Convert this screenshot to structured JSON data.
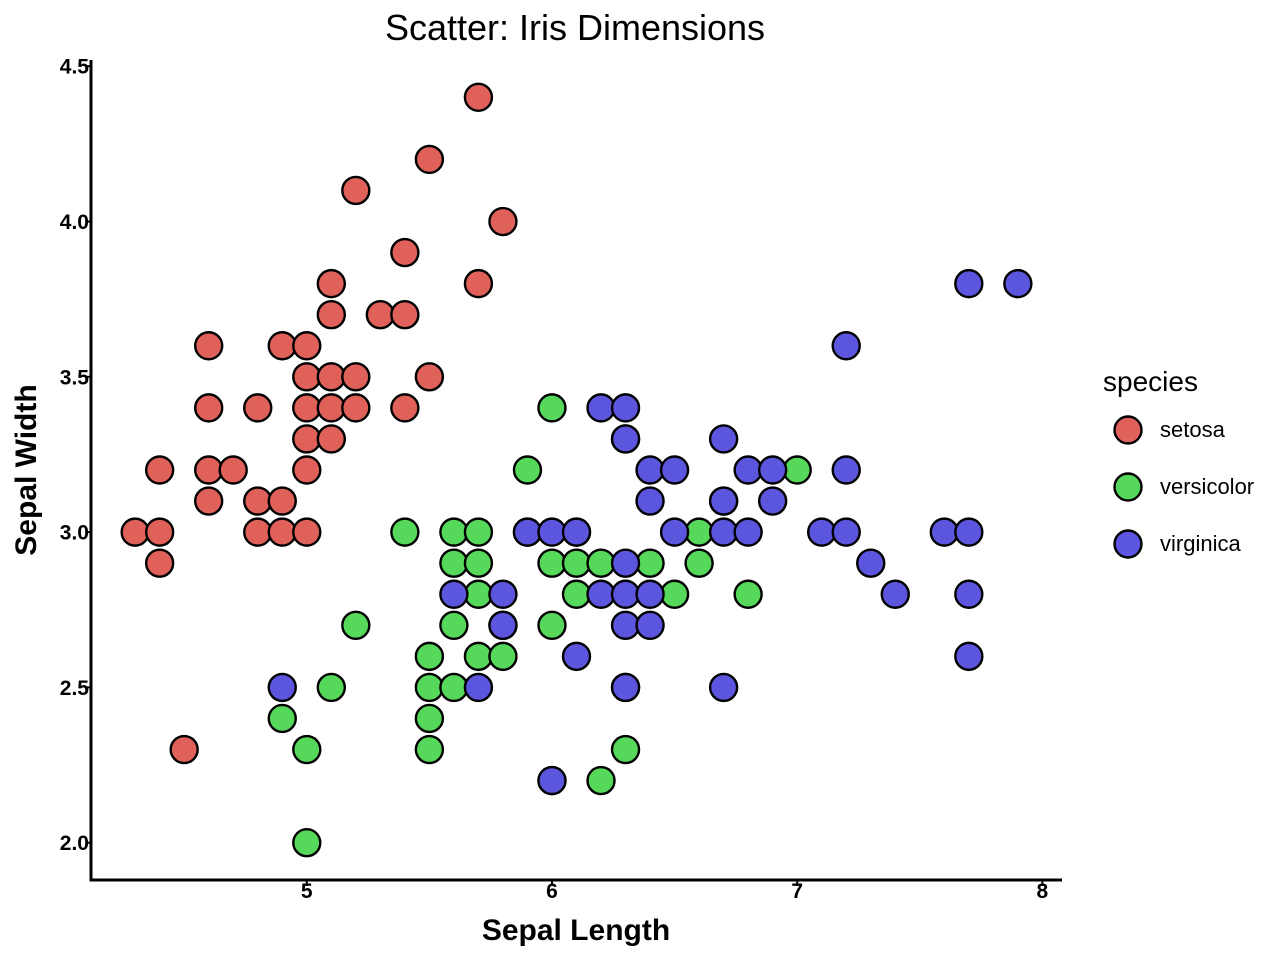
{
  "chart_data": {
    "type": "scatter",
    "title": "Scatter: Iris Dimensions",
    "xlabel": "Sepal Length",
    "ylabel": "Sepal Width",
    "xlim": [
      4.12,
      8.08
    ],
    "ylim": [
      1.88,
      4.52
    ],
    "xticks": [
      5,
      6,
      7,
      8
    ],
    "yticks": [
      2.0,
      2.5,
      3.0,
      3.5,
      4.0,
      4.5
    ],
    "grid": false,
    "legend": {
      "title": "species",
      "position": "right"
    },
    "series": [
      {
        "name": "setosa",
        "color": "#e0605a",
        "points": [
          [
            4.3,
            3.0
          ],
          [
            4.4,
            3.0
          ],
          [
            4.4,
            2.9
          ],
          [
            4.4,
            3.2
          ],
          [
            4.5,
            2.3
          ],
          [
            4.6,
            3.1
          ],
          [
            4.6,
            3.2
          ],
          [
            4.6,
            3.4
          ],
          [
            4.6,
            3.6
          ],
          [
            4.7,
            3.2
          ],
          [
            4.8,
            3.4
          ],
          [
            4.8,
            3.1
          ],
          [
            4.8,
            3.0
          ],
          [
            4.9,
            3.0
          ],
          [
            4.9,
            3.1
          ],
          [
            4.9,
            3.6
          ],
          [
            5.0,
            3.6
          ],
          [
            5.0,
            3.4
          ],
          [
            5.0,
            3.5
          ],
          [
            5.0,
            3.3
          ],
          [
            5.0,
            3.2
          ],
          [
            5.0,
            3.0
          ],
          [
            5.1,
            3.5
          ],
          [
            5.1,
            3.8
          ],
          [
            5.1,
            3.7
          ],
          [
            5.1,
            3.4
          ],
          [
            5.1,
            3.3
          ],
          [
            5.2,
            3.5
          ],
          [
            5.2,
            3.4
          ],
          [
            5.2,
            4.1
          ],
          [
            5.3,
            3.7
          ],
          [
            5.4,
            3.9
          ],
          [
            5.4,
            3.7
          ],
          [
            5.4,
            3.4
          ],
          [
            5.5,
            4.2
          ],
          [
            5.5,
            3.5
          ],
          [
            5.7,
            4.4
          ],
          [
            5.7,
            3.8
          ],
          [
            5.8,
            4.0
          ]
        ]
      },
      {
        "name": "versicolor",
        "color": "#56d95a",
        "points": [
          [
            4.9,
            2.4
          ],
          [
            5.0,
            2.3
          ],
          [
            5.0,
            2.0
          ],
          [
            5.1,
            2.5
          ],
          [
            5.2,
            2.7
          ],
          [
            5.4,
            3.0
          ],
          [
            5.5,
            2.3
          ],
          [
            5.5,
            2.4
          ],
          [
            5.5,
            2.5
          ],
          [
            5.5,
            2.6
          ],
          [
            5.6,
            2.5
          ],
          [
            5.6,
            2.7
          ],
          [
            5.6,
            2.9
          ],
          [
            5.6,
            3.0
          ],
          [
            5.7,
            2.6
          ],
          [
            5.7,
            2.8
          ],
          [
            5.7,
            2.9
          ],
          [
            5.7,
            3.0
          ],
          [
            5.8,
            2.6
          ],
          [
            5.8,
            2.7
          ],
          [
            5.9,
            3.2
          ],
          [
            5.9,
            3.0
          ],
          [
            6.0,
            2.7
          ],
          [
            6.0,
            2.9
          ],
          [
            6.0,
            3.4
          ],
          [
            6.0,
            2.2
          ],
          [
            6.1,
            2.8
          ],
          [
            6.1,
            2.9
          ],
          [
            6.1,
            3.0
          ],
          [
            6.2,
            2.2
          ],
          [
            6.2,
            2.9
          ],
          [
            6.3,
            2.3
          ],
          [
            6.3,
            2.5
          ],
          [
            6.3,
            3.3
          ],
          [
            6.4,
            2.9
          ],
          [
            6.5,
            2.8
          ],
          [
            6.6,
            2.9
          ],
          [
            6.6,
            3.0
          ],
          [
            6.7,
            3.1
          ],
          [
            6.8,
            2.8
          ],
          [
            7.0,
            3.2
          ]
        ]
      },
      {
        "name": "virginica",
        "color": "#5c56df",
        "points": [
          [
            4.9,
            2.5
          ],
          [
            5.6,
            2.8
          ],
          [
            5.7,
            2.5
          ],
          [
            5.8,
            2.7
          ],
          [
            5.8,
            2.8
          ],
          [
            5.9,
            3.0
          ],
          [
            6.0,
            2.2
          ],
          [
            6.0,
            3.0
          ],
          [
            6.1,
            2.6
          ],
          [
            6.1,
            3.0
          ],
          [
            6.2,
            2.8
          ],
          [
            6.2,
            3.4
          ],
          [
            6.3,
            2.5
          ],
          [
            6.3,
            2.7
          ],
          [
            6.3,
            2.8
          ],
          [
            6.3,
            2.9
          ],
          [
            6.3,
            3.3
          ],
          [
            6.3,
            3.4
          ],
          [
            6.4,
            2.7
          ],
          [
            6.4,
            2.8
          ],
          [
            6.4,
            3.1
          ],
          [
            6.4,
            3.2
          ],
          [
            6.5,
            3.0
          ],
          [
            6.5,
            3.2
          ],
          [
            6.7,
            2.5
          ],
          [
            6.7,
            3.0
          ],
          [
            6.7,
            3.1
          ],
          [
            6.7,
            3.3
          ],
          [
            6.8,
            3.0
          ],
          [
            6.8,
            3.2
          ],
          [
            6.9,
            3.1
          ],
          [
            6.9,
            3.2
          ],
          [
            7.1,
            3.0
          ],
          [
            7.2,
            3.0
          ],
          [
            7.2,
            3.2
          ],
          [
            7.2,
            3.6
          ],
          [
            7.3,
            2.9
          ],
          [
            7.4,
            2.8
          ],
          [
            7.6,
            3.0
          ],
          [
            7.7,
            2.6
          ],
          [
            7.7,
            2.8
          ],
          [
            7.7,
            3.0
          ],
          [
            7.7,
            3.8
          ],
          [
            7.9,
            3.8
          ]
        ]
      }
    ]
  }
}
